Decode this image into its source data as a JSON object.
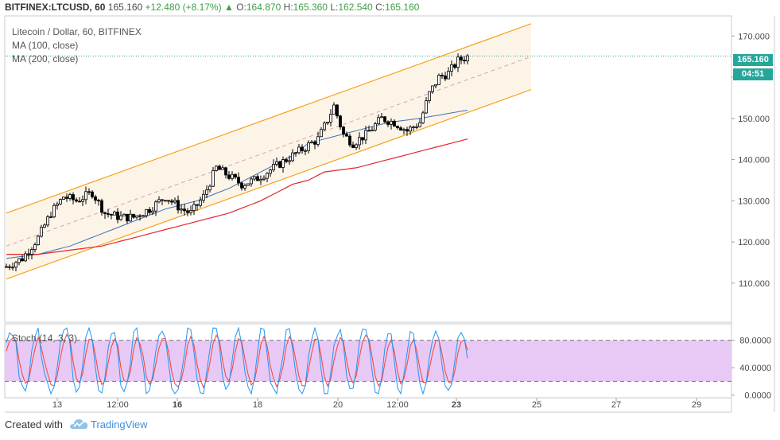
{
  "header": {
    "symbol": "BITFINEX:LTCUSD, 60",
    "last": "165.160",
    "change": "+12.480 (+8.17%)",
    "arrow": "▲",
    "open_label": "O:",
    "open": "164.870",
    "high_label": "H:",
    "high": "165.360",
    "low_label": "L:",
    "low": "162.540",
    "close_label": "C:",
    "close": "165.160"
  },
  "legend": {
    "title": "Litecoin / Dollar, 60, BITFINEX",
    "ma100": "MA (100, close)",
    "ma200": "MA (200, close)",
    "stoch": "Stoch (14, 3, 3)"
  },
  "price_tag": "165.160",
  "timer_tag": "04:51",
  "footer": {
    "created": "Created with",
    "brand": "TradingView"
  },
  "colors": {
    "candle": "#000000",
    "channel": "#f7a21b",
    "channel_fill": "#fdf4e8",
    "ma100": "#3b73b9",
    "ma200": "#e3262b",
    "price_line": "#26a69a",
    "stoch_k": "#2196f3",
    "stoch_d": "#f44336",
    "stoch_band": "#e8c9f5",
    "tag": "#26a69a"
  },
  "icons": {
    "logo": "tradingview-cloud-icon",
    "arrow": "up-arrow-icon"
  },
  "chart_data": [
    {
      "type": "candlestick",
      "title": "Litecoin / Dollar, 60, BITFINEX",
      "y_ticks": [
        "170.000",
        "160.000",
        "150.000",
        "140.000",
        "130.000",
        "120.000",
        "110.000"
      ],
      "y_tick_values": [
        170,
        160,
        150,
        140,
        130,
        120,
        110
      ],
      "x_ticks": [
        "13",
        "12:00",
        "16",
        "18",
        "20",
        "12:00",
        "23",
        "25",
        "27",
        "29"
      ],
      "x_ticks_bold": [
        false,
        false,
        true,
        false,
        false,
        false,
        true,
        false,
        false,
        false
      ],
      "ylim": [
        100.5,
        174.5
      ],
      "last_price": 165.16,
      "close_path": [
        [
          0,
          114
        ],
        [
          5,
          116
        ],
        [
          10,
          121
        ],
        [
          14,
          127
        ],
        [
          18,
          131
        ],
        [
          22,
          130
        ],
        [
          27,
          132
        ],
        [
          31,
          127
        ],
        [
          36,
          126
        ],
        [
          40,
          126
        ],
        [
          45,
          128
        ],
        [
          50,
          131
        ],
        [
          55,
          128
        ],
        [
          58,
          127
        ],
        [
          62,
          131
        ],
        [
          66,
          138
        ],
        [
          70,
          136
        ],
        [
          74,
          134
        ],
        [
          78,
          135
        ],
        [
          82,
          137
        ],
        [
          86,
          139
        ],
        [
          90,
          141
        ],
        [
          94,
          143
        ],
        [
          98,
          145
        ],
        [
          100,
          148
        ],
        [
          103,
          153
        ],
        [
          106,
          146
        ],
        [
          109,
          144
        ],
        [
          113,
          146
        ],
        [
          118,
          150
        ],
        [
          122,
          149
        ],
        [
          126,
          147
        ],
        [
          130,
          149
        ],
        [
          133,
          156
        ],
        [
          136,
          160
        ],
        [
          139,
          161
        ],
        [
          142,
          164
        ],
        [
          145,
          165
        ]
      ],
      "ma100_path": [
        [
          0,
          116
        ],
        [
          10,
          117
        ],
        [
          20,
          119
        ],
        [
          30,
          122
        ],
        [
          40,
          125
        ],
        [
          50,
          128
        ],
        [
          60,
          130
        ],
        [
          70,
          133
        ],
        [
          80,
          137
        ],
        [
          90,
          141
        ],
        [
          95,
          144
        ],
        [
          100,
          145
        ],
        [
          110,
          147
        ],
        [
          120,
          149
        ],
        [
          130,
          150
        ],
        [
          145,
          152
        ]
      ],
      "ma200_path": [
        [
          0,
          117
        ],
        [
          10,
          117
        ],
        [
          20,
          118
        ],
        [
          30,
          119
        ],
        [
          40,
          121
        ],
        [
          50,
          123
        ],
        [
          60,
          125
        ],
        [
          70,
          127
        ],
        [
          80,
          130
        ],
        [
          90,
          134
        ],
        [
          95,
          135
        ],
        [
          100,
          137
        ],
        [
          110,
          138
        ],
        [
          120,
          140
        ],
        [
          130,
          142
        ],
        [
          140,
          144
        ],
        [
          145,
          145
        ]
      ],
      "channel_upper": [
        [
          0,
          127
        ],
        [
          165,
          173
        ]
      ],
      "channel_lower": [
        [
          0,
          111
        ],
        [
          165,
          157
        ]
      ],
      "channel_mid": [
        [
          0,
          119
        ],
        [
          165,
          165
        ]
      ]
    },
    {
      "type": "line",
      "title": "Stoch (14, 3, 3)",
      "y_ticks": [
        "80.0000",
        "40.0000",
        "0.0000"
      ],
      "y_tick_values": [
        80,
        40,
        0
      ],
      "bands": [
        20,
        80
      ],
      "ylim": [
        -4,
        104
      ]
    }
  ]
}
